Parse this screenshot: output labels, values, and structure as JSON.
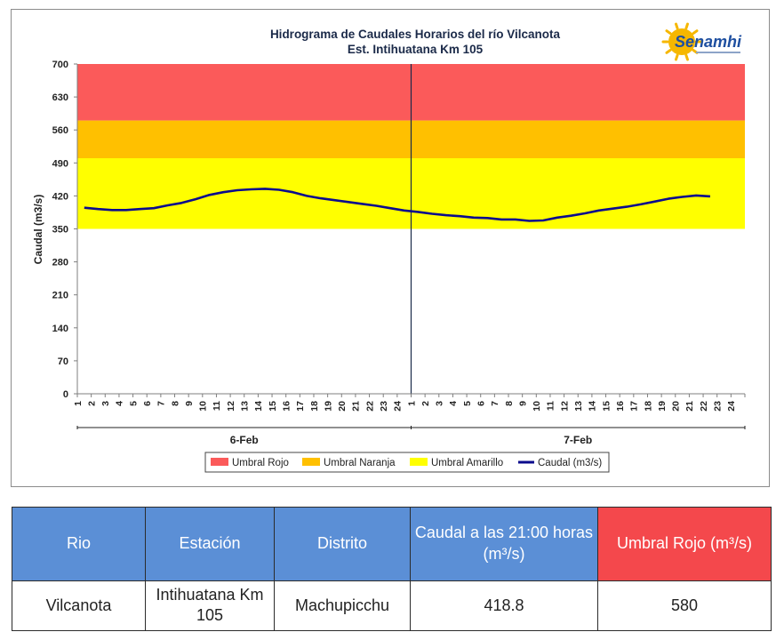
{
  "chart_data": {
    "type": "line",
    "title": "Hidrograma de Caudales Horarios del río Vilcanota",
    "subtitle": "Est. Intihuatana Km 105",
    "ylabel": "Caudal  (m3/s)",
    "ylim": [
      0,
      700
    ],
    "yticks": [
      "0",
      "70",
      "140",
      "210",
      "280",
      "350",
      "420",
      "490",
      "560",
      "630",
      "700"
    ],
    "hour_ticks": [
      "1",
      "2",
      "3",
      "4",
      "5",
      "6",
      "7",
      "8",
      "9",
      "10",
      "11",
      "12",
      "13",
      "14",
      "15",
      "16",
      "17",
      "18",
      "19",
      "20",
      "21",
      "22",
      "23",
      "24"
    ],
    "days": [
      "6-Feb",
      "7-Feb"
    ],
    "bands": [
      {
        "name": "Umbral Rojo",
        "from": 580,
        "to": 700,
        "color": "#fb5a5a"
      },
      {
        "name": "Umbral Naranja",
        "from": 500,
        "to": 580,
        "color": "#ffc000"
      },
      {
        "name": "Umbral Amarillo",
        "from": 350,
        "to": 500,
        "color": "#ffff00"
      }
    ],
    "series": [
      {
        "name": "Caudal (m3/s)",
        "color": "#0b0b8c",
        "values": [
          395,
          392,
          390,
          390,
          392,
          394,
          400,
          405,
          413,
          422,
          428,
          432,
          434,
          435,
          433,
          428,
          420,
          415,
          411,
          407,
          403,
          399,
          394,
          389,
          386,
          382,
          379,
          377,
          374,
          373,
          370,
          370,
          367,
          368,
          374,
          378,
          383,
          389,
          393,
          397,
          402,
          408,
          414,
          418,
          421,
          419
        ]
      }
    ],
    "legend": [
      "Umbral Rojo",
      "Umbral Naranja",
      "Umbral Amarillo",
      "Caudal (m3/s)"
    ],
    "legend_position": "bottom",
    "grid": false
  },
  "logo": {
    "text": "Senamhi",
    "watermark": "Senamhi"
  },
  "table": {
    "headers": [
      "Rio",
      "Estación",
      "Distrito",
      "Caudal a las 21:00 horas (m³/s)",
      "Umbral Rojo (m³/s)"
    ],
    "row": [
      "Vilcanota",
      "Intihuatana Km 105",
      "Machupicchu",
      "418.8",
      "580"
    ]
  }
}
